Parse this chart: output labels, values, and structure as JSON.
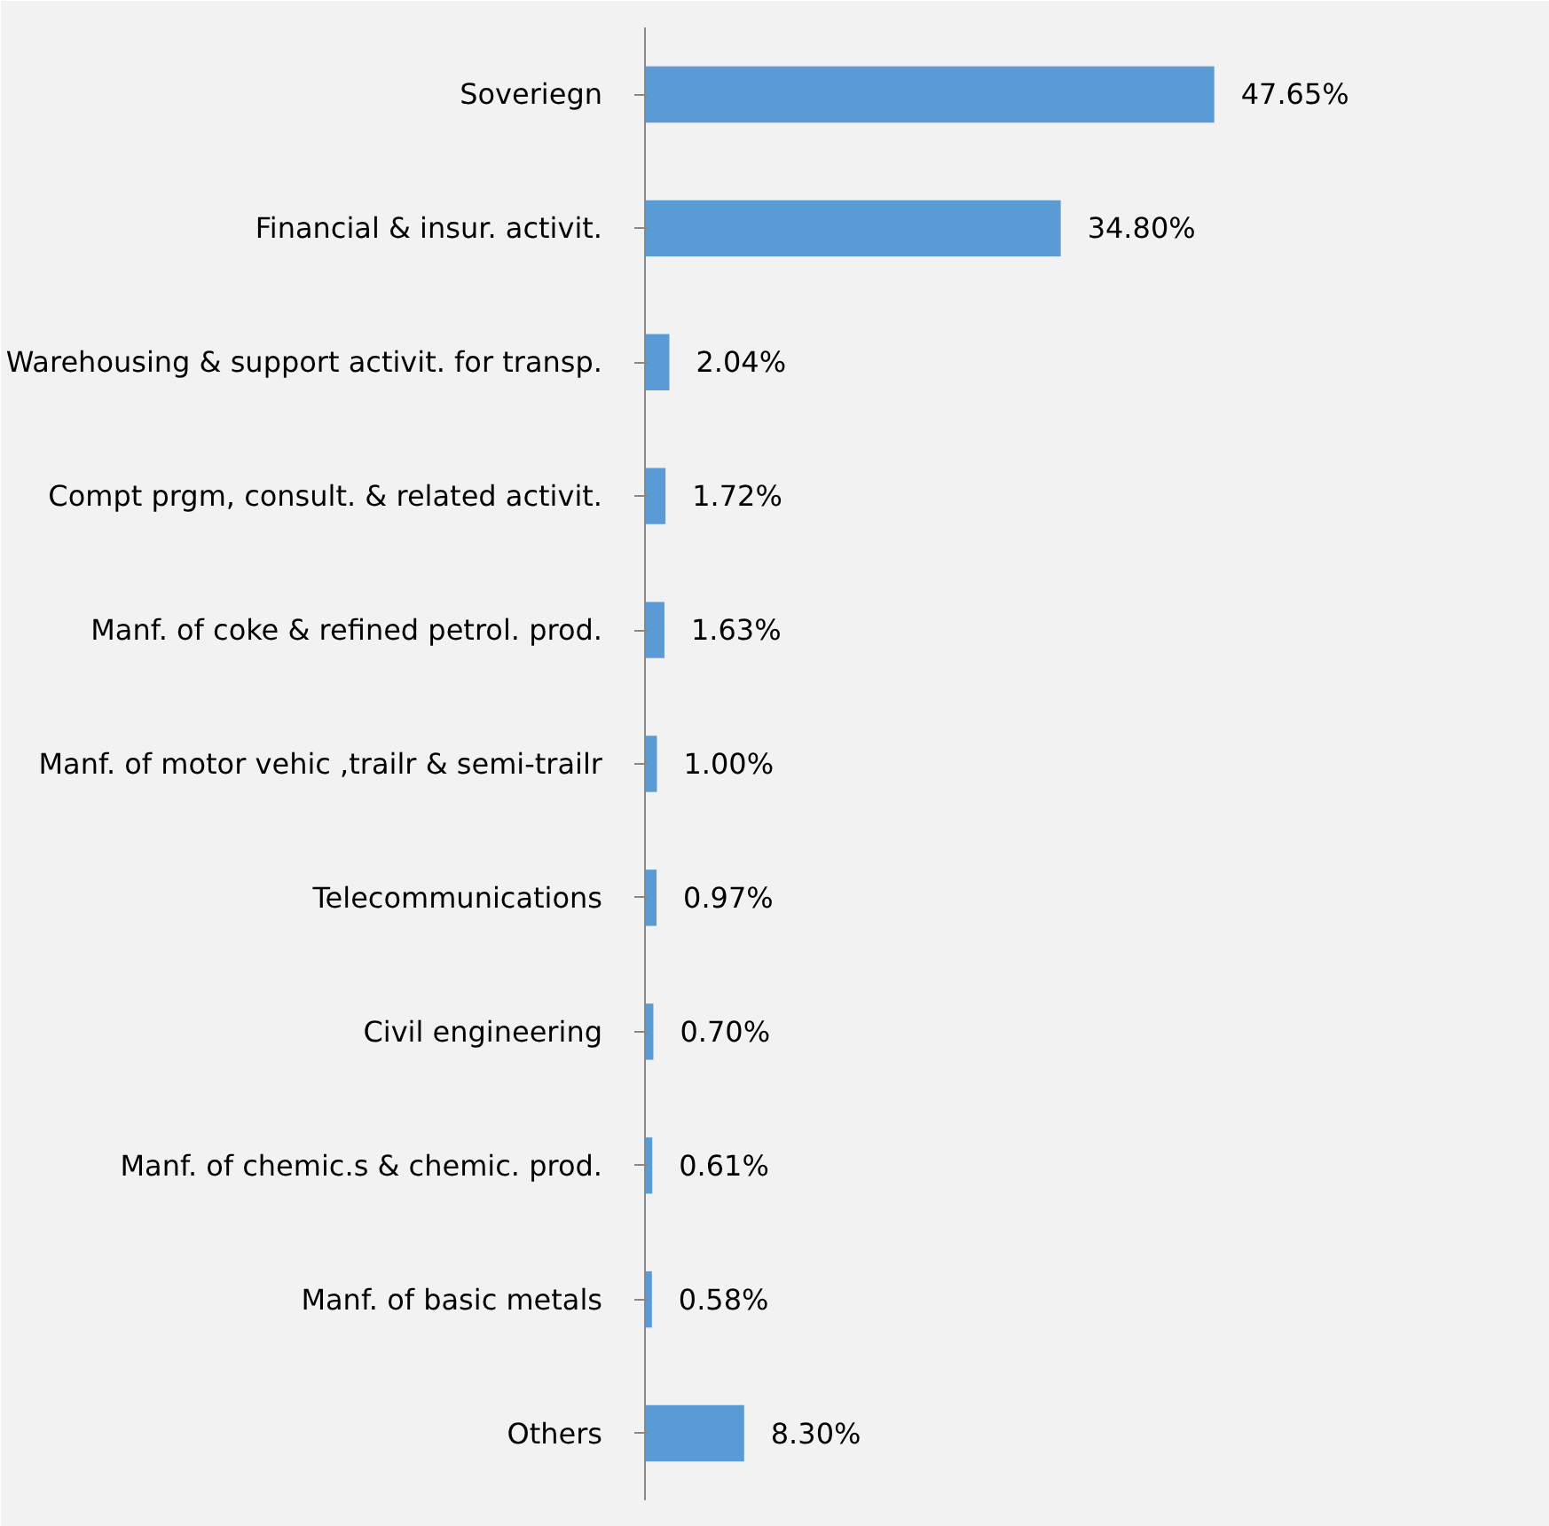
{
  "chart_data": {
    "type": "bar",
    "orientation": "horizontal",
    "categories": [
      "Soveriegn",
      "Financial & insur. activit.",
      "Warehousing & support activit. for transp.",
      "Compt prgm, consult. & related activit.",
      "Manf. of coke & refined petrol. prod.",
      "Manf. of motor vehic ,trailr & semi-trailr",
      "Telecommunications",
      "Civil engineering",
      "Manf. of chemic.s & chemic. prod.",
      "Manf. of basic metals",
      "Others"
    ],
    "values": [
      47.65,
      34.8,
      2.04,
      1.72,
      1.63,
      1.0,
      0.97,
      0.7,
      0.61,
      0.58,
      8.3
    ],
    "value_labels": [
      "47.65%",
      "34.80%",
      "2.04%",
      "1.72%",
      "1.63%",
      "1.00%",
      "0.97%",
      "0.70%",
      "0.61%",
      "0.58%",
      "8.30%"
    ],
    "color": "#5b9bd5",
    "xlim": [
      0,
      75
    ],
    "tick_labels": "y",
    "grid": false
  }
}
